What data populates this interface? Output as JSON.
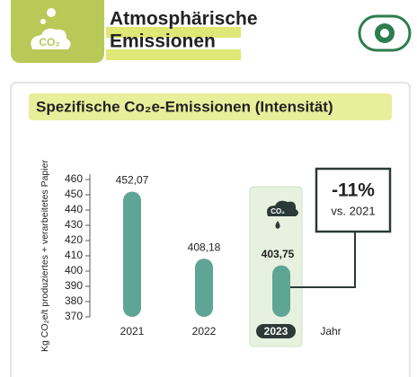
{
  "header": {
    "icon_label": "CO₂",
    "title_lines": [
      "Atmosphärische",
      "Emissionen"
    ]
  },
  "chart_data": {
    "type": "bar",
    "title": "Spezifische Co₂e-Emissionen (Intensität)",
    "ylabel": "Kg CO₂e/t produziertes + verarbeitetes Papier",
    "xlabel": "Jahr",
    "categories": [
      "2021",
      "2022",
      "2023"
    ],
    "values": [
      452.07,
      408.18,
      403.75
    ],
    "value_labels": [
      "452,07",
      "408,18",
      "403,75"
    ],
    "color": "#5fa596",
    "ylim": [
      370,
      460
    ],
    "yticks": [
      370,
      380,
      390,
      400,
      410,
      420,
      430,
      440,
      450,
      460
    ],
    "highlight_index": 2,
    "highlight_icon_label": "CO₂",
    "annotation": {
      "text": "-11%",
      "subtext": "vs. 2021"
    }
  }
}
